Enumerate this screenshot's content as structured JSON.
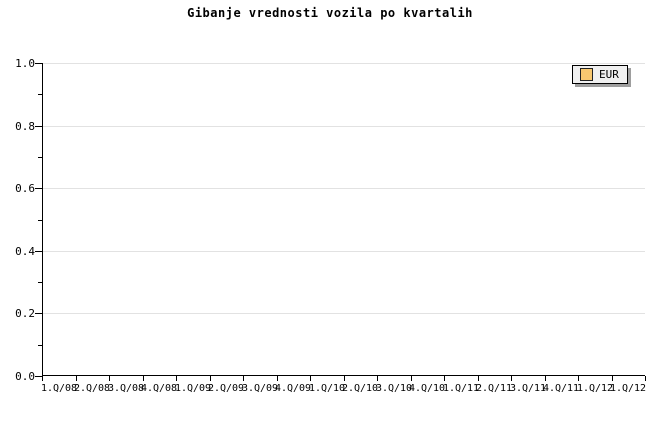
{
  "chart": {
    "title": "Gibanje vrednosti vozila po kvartalih",
    "legend": [
      {
        "label": "EUR",
        "swatch_color": "#f8c870"
      }
    ],
    "colors": {
      "background": "#ffffff",
      "axis": "#000000",
      "gridline": "#e2e2e2",
      "legend_background": "#f0f0f0",
      "legend_shadow": "#9e9e9e",
      "series_eur_swatch": "#f8c870"
    }
  },
  "chart_data": {
    "type": "line",
    "title": "Gibanje vrednosti vozila po kvartalih",
    "categories": [
      "1.Q/08",
      "2.Q/08",
      "3.Q/08",
      "4.Q/08",
      "1.Q/09",
      "2.Q/09",
      "3.Q/09",
      "4.Q/09",
      "1.Q/10",
      "2.Q/10",
      "3.Q/10",
      "4.Q/10",
      "1.Q/11",
      "2.Q/11",
      "3.Q/11",
      "4.Q/11",
      "1.Q/12",
      "1.Q/12"
    ],
    "series": [
      {
        "name": "EUR",
        "values": []
      }
    ],
    "xlabel": "",
    "ylabel": "",
    "ylim": [
      0.0,
      1.0
    ],
    "yticks": [
      0.0,
      0.2,
      0.4,
      0.6,
      0.8,
      1.0
    ],
    "ytick_labels": [
      "0.0",
      "0.2",
      "0.4",
      "0.6",
      "0.8",
      "1.0"
    ],
    "minor_ytick_step": 0.1,
    "grid": "horizontal-only",
    "legend_position": "top-right",
    "plot_is_empty": true
  }
}
